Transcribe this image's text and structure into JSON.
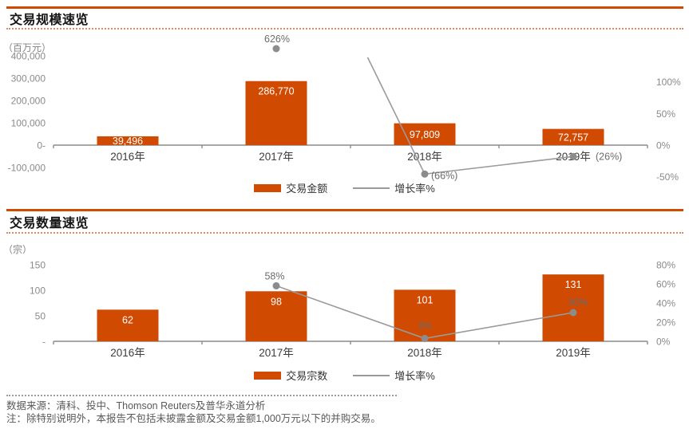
{
  "page": {
    "source_line": "数据来源：清科、投中、Thomson Reuters及普华永道分析",
    "note_line": "注：除特别说明外，本报告不包括未披露金额及交易金额1,000万元以下的并购交易。"
  },
  "colors": {
    "accent": "#D04A02",
    "line_gray": "#9A9A9A",
    "marker_gray": "#8C8C8C"
  },
  "chart_data": [
    {
      "type": "bar+line",
      "title": "交易规模速览",
      "unit_label": "（百万元）",
      "categories": [
        "2016年",
        "2017年",
        "2018年",
        "2019年"
      ],
      "series": [
        {
          "name": "交易金额",
          "type": "bar",
          "values": [
            39496,
            286770,
            97809,
            72757
          ],
          "labels": [
            "39,496",
            "286,770",
            "97,809",
            "72,757"
          ]
        },
        {
          "name": "增长率%",
          "type": "line",
          "values": [
            null,
            626,
            -66,
            -26
          ],
          "labels": [
            "",
            "626%",
            "(66%)",
            "(26%)"
          ]
        }
      ],
      "left_axis": {
        "tick_labels": [
          "400,000",
          "300,000",
          "200,000",
          "100,000",
          "0-",
          "-100,000"
        ],
        "tick_values": [
          400000,
          300000,
          200000,
          100000,
          0,
          -100000
        ],
        "min": -100000,
        "max": 400000
      },
      "right_axis": {
        "tick_labels": [
          "100%",
          "50%",
          "0%",
          "-50%"
        ],
        "tick_values": [
          100,
          50,
          0,
          -50
        ],
        "min": -50,
        "max": 100
      },
      "grid": false,
      "legend_position": "bottom"
    },
    {
      "type": "bar+line",
      "title": "交易数量速览",
      "unit_label": "（宗）",
      "categories": [
        "2016年",
        "2017年",
        "2018年",
        "2019年"
      ],
      "series": [
        {
          "name": "交易宗数",
          "type": "bar",
          "values": [
            62,
            98,
            101,
            131
          ],
          "labels": [
            "62",
            "98",
            "101",
            "131"
          ]
        },
        {
          "name": "增长率%",
          "type": "line",
          "values": [
            null,
            58,
            3,
            30
          ],
          "labels": [
            "",
            "58%",
            "3%",
            "30%"
          ]
        }
      ],
      "left_axis": {
        "tick_labels": [
          "150",
          "100",
          "50",
          "-"
        ],
        "tick_values": [
          150,
          100,
          50,
          0
        ],
        "min": 0,
        "max": 150
      },
      "right_axis": {
        "tick_labels": [
          "80%",
          "60%",
          "40%",
          "20%",
          "0%"
        ],
        "tick_values": [
          80,
          60,
          40,
          20,
          0
        ],
        "min": 0,
        "max": 80
      },
      "grid": false,
      "legend_position": "bottom"
    }
  ]
}
